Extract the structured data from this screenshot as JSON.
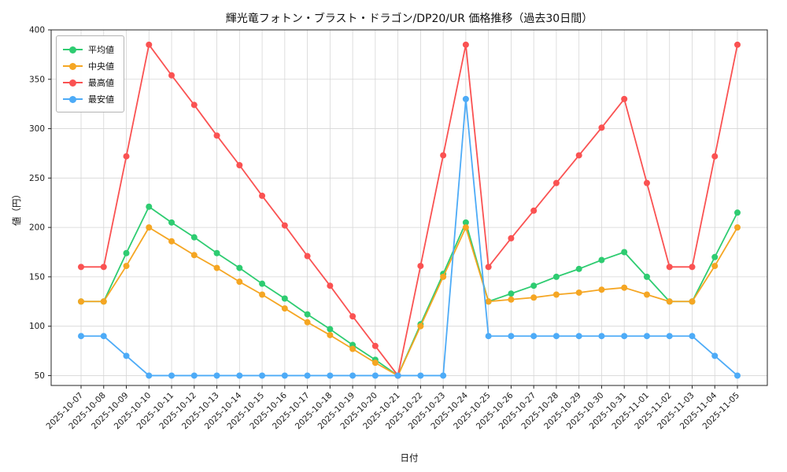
{
  "chart_data": {
    "type": "line",
    "title": "輝光竜フォトン・ブラスト・ドラゴン/DP20/UR 価格推移（過去30日間）",
    "xlabel": "日付",
    "ylabel": "値（円）",
    "grid": true,
    "legend_position": "upper left",
    "ylim": [
      40,
      400
    ],
    "yticks": [
      50,
      100,
      150,
      200,
      250,
      300,
      350,
      400
    ],
    "x": [
      "2025-10-07",
      "2025-10-08",
      "2025-10-09",
      "2025-10-10",
      "2025-10-11",
      "2025-10-12",
      "2025-10-13",
      "2025-10-14",
      "2025-10-15",
      "2025-10-16",
      "2025-10-17",
      "2025-10-18",
      "2025-10-19",
      "2025-10-20",
      "2025-10-21",
      "2025-10-22",
      "2025-10-23",
      "2025-10-24",
      "2025-10-25",
      "2025-10-26",
      "2025-10-27",
      "2025-10-28",
      "2025-10-29",
      "2025-10-30",
      "2025-10-31",
      "2025-11-01",
      "2025-11-02",
      "2025-11-03",
      "2025-11-04",
      "2025-11-05"
    ],
    "series": [
      {
        "key": "average",
        "name": "平均値",
        "color": "#2ecc71",
        "values": [
          125,
          125,
          174,
          221,
          205,
          190,
          174,
          159,
          143,
          128,
          112,
          97,
          81,
          66,
          50,
          102,
          153,
          205,
          125,
          133,
          141,
          150,
          158,
          167,
          175,
          150,
          125,
          125,
          170,
          215
        ]
      },
      {
        "key": "median",
        "name": "中央値",
        "color": "#f5a623",
        "values": [
          125,
          125,
          161,
          200,
          186,
          172,
          159,
          145,
          132,
          118,
          104,
          91,
          77,
          63,
          50,
          100,
          150,
          200,
          125,
          127,
          129,
          132,
          134,
          137,
          139,
          132,
          125,
          125,
          161,
          200
        ]
      },
      {
        "key": "max",
        "name": "最高値",
        "color": "#fa5252",
        "values": [
          160,
          160,
          272,
          385,
          354,
          324,
          293,
          263,
          232,
          202,
          171,
          141,
          110,
          80,
          50,
          161,
          273,
          385,
          160,
          189,
          217,
          245,
          273,
          301,
          330,
          245,
          160,
          160,
          272,
          385
        ]
      },
      {
        "key": "min",
        "name": "最安値",
        "color": "#4dabf7",
        "values": [
          90,
          90,
          70,
          50,
          50,
          50,
          50,
          50,
          50,
          50,
          50,
          50,
          50,
          50,
          50,
          50,
          50,
          330,
          90,
          90,
          90,
          90,
          90,
          90,
          90,
          90,
          90,
          90,
          70,
          50
        ]
      }
    ]
  }
}
